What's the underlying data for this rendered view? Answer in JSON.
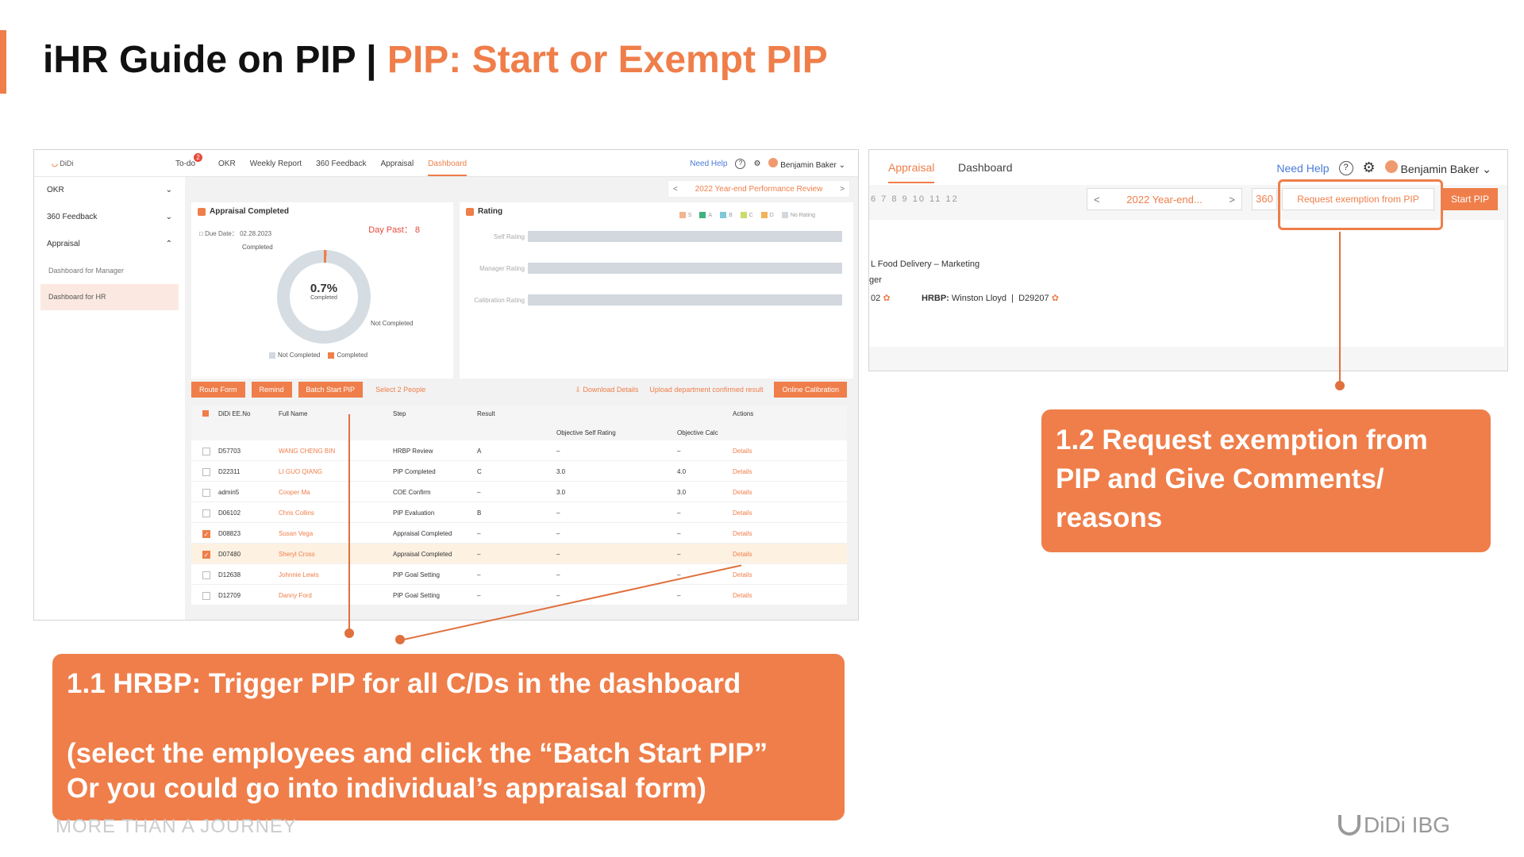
{
  "slide": {
    "title_main": "iHR Guide on PIP | ",
    "title_sub": "PIP: Start or Exempt PIP",
    "footer_slogan": "MORE THAN A JOURNEY",
    "footer_logo": "DiDi IBG"
  },
  "shot1": {
    "logo": "DiDi",
    "nav": [
      {
        "label": "To-do",
        "badge": "2"
      },
      {
        "label": "OKR"
      },
      {
        "label": "Weekly Report"
      },
      {
        "label": "360 Feedback"
      },
      {
        "label": "Appraisal"
      },
      {
        "label": "Dashboard",
        "active": true
      }
    ],
    "need_help": "Need Help",
    "user": "Benjamin Baker",
    "sidebar": {
      "items": [
        "OKR",
        "360 Feedback",
        "Appraisal"
      ],
      "subitems": [
        "Dashboard for Manager",
        "Dashboard for HR"
      ]
    },
    "review": "2022 Year-end Performance Review",
    "appraisal_card": {
      "title": "Appraisal Completed",
      "day_past": "Day Past： 8",
      "due_date": "Due Date： 02.28.2023",
      "completed_label": "Completed",
      "not_completed_label": "Not Completed",
      "percent": "0.7%",
      "percent_value": 0.7,
      "percent_caption": "Completed",
      "legend": [
        "Not Completed",
        "Completed"
      ]
    },
    "rating_card": {
      "title": "Rating",
      "legend": [
        "S",
        "A",
        "B",
        "C",
        "D",
        "No Rating"
      ],
      "rows": [
        "Self Rating",
        "Manager Rating",
        "Calibration Rating"
      ]
    },
    "actions": {
      "route_form": "Route Form",
      "remind": "Remind",
      "batch_start": "Batch Start PIP",
      "select_people": "Select 2 People",
      "download": "Download Details",
      "upload": "Upload department confirmed result",
      "online_calibration": "Online Calibration"
    },
    "table": {
      "headers": {
        "id": "DiDi EE.No",
        "name": "Full Name",
        "step": "Step",
        "result": "Result",
        "obj_self": "Objective Self Rating",
        "obj_calc": "Objective Calc",
        "actions": "Actions"
      },
      "rows": [
        {
          "id": "D57703",
          "name": "WANG CHENG BIN",
          "step": "HRBP Review",
          "result": "A",
          "self": "–",
          "calc": "–",
          "action": "Details",
          "checked": false
        },
        {
          "id": "D22311",
          "name": "LI GUO QIANG",
          "step": "PIP Completed",
          "result": "C",
          "self": "3.0",
          "calc": "4.0",
          "action": "Details",
          "checked": false
        },
        {
          "id": "admin5",
          "name": "Cooper Ma",
          "step": "COE Confirm",
          "result": "–",
          "self": "3.0",
          "calc": "3.0",
          "action": "Details",
          "checked": false
        },
        {
          "id": "D06102",
          "name": "Chris Collins",
          "step": "PIP Evaluation",
          "result": "B",
          "self": "–",
          "calc": "–",
          "action": "Details",
          "checked": false
        },
        {
          "id": "D08823",
          "name": "Susan Vega",
          "step": "Appraisal Completed",
          "result": "–",
          "self": "–",
          "calc": "–",
          "action": "Details",
          "checked": true
        },
        {
          "id": "D07480",
          "name": "Sheryl Cross",
          "step": "Appraisal Completed",
          "result": "–",
          "self": "–",
          "calc": "–",
          "action": "Details",
          "checked": true
        },
        {
          "id": "D12638",
          "name": "Johnnie Lewis",
          "step": "PIP Goal Setting",
          "result": "–",
          "self": "–",
          "calc": "–",
          "action": "Details",
          "checked": false
        },
        {
          "id": "D12709",
          "name": "Danny Ford",
          "step": "PIP Goal Setting",
          "result": "–",
          "self": "–",
          "calc": "–",
          "action": "Details",
          "checked": false
        }
      ]
    }
  },
  "shot2": {
    "tabs": [
      "Appraisal",
      "Dashboard"
    ],
    "need_help": "Need Help",
    "user": "Benjamin Baker",
    "nums": "6 7 8 9 10 11 12",
    "review": "2022 Year-end...",
    "b360": "360",
    "request_exemption": "Request exemption from PIP",
    "start_pip": "Start PIP",
    "dept": "L Food Delivery – Marketing",
    "role_frag": "ger",
    "id_frag": "02",
    "hrbp_label": "HRBP:",
    "hrbp_name": "Winston Lloyd",
    "hrbp_id": "D29207"
  },
  "callouts": {
    "c1": "1.1 HRBP: Trigger PIP for all C/Ds in the dashboard\n\n(select the employees and click the “Batch Start PIP”\nOr you could go into individual’s appraisal form)",
    "c2": "1.2 Request exemption from PIP and Give Comments/ reasons"
  },
  "colors": {
    "accent": "#ef7e4a",
    "link": "#4a7bd9"
  }
}
